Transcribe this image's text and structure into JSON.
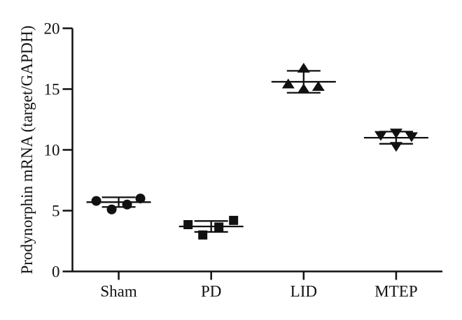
{
  "figure": {
    "background": "#ffffff",
    "ink_color": "#111111"
  },
  "chart_data": {
    "type": "scatter",
    "subtype": "dot-plot-with-mean-sem",
    "title": "",
    "xlabel": "",
    "ylabel": "Prodynorphin mRNA (target/GAPDH)",
    "categories": [
      "Sham",
      "PD",
      "LID",
      "MTEP"
    ],
    "ylim": [
      0,
      20
    ],
    "yticks": [
      0,
      5,
      10,
      15,
      20
    ],
    "grid": false,
    "legend": "none",
    "marker_color": "#111111",
    "groups": [
      {
        "label": "Sham",
        "marker": "circle",
        "mean": 5.7,
        "sem": 0.4,
        "points": [
          {
            "value": 5.8,
            "dx": -32
          },
          {
            "value": 5.1,
            "dx": -10
          },
          {
            "value": 5.5,
            "dx": 12
          },
          {
            "value": 6.0,
            "dx": 31
          }
        ]
      },
      {
        "label": "PD",
        "marker": "square",
        "mean": 3.7,
        "sem": 0.45,
        "points": [
          {
            "value": 3.85,
            "dx": -33
          },
          {
            "value": 3.0,
            "dx": -12
          },
          {
            "value": 3.65,
            "dx": 11
          },
          {
            "value": 4.2,
            "dx": 32
          }
        ]
      },
      {
        "label": "LID",
        "marker": "triangle-up",
        "mean": 15.6,
        "sem": 0.9,
        "points": [
          {
            "value": 16.7,
            "dx": 0
          },
          {
            "value": 15.4,
            "dx": -22
          },
          {
            "value": 15.0,
            "dx": 0
          },
          {
            "value": 15.2,
            "dx": 21
          }
        ]
      },
      {
        "label": "MTEP",
        "marker": "triangle-down",
        "mean": 11.0,
        "sem": 0.5,
        "points": [
          {
            "value": 11.2,
            "dx": -22
          },
          {
            "value": 11.4,
            "dx": 0
          },
          {
            "value": 11.1,
            "dx": 22
          },
          {
            "value": 10.3,
            "dx": 0
          }
        ]
      }
    ]
  }
}
